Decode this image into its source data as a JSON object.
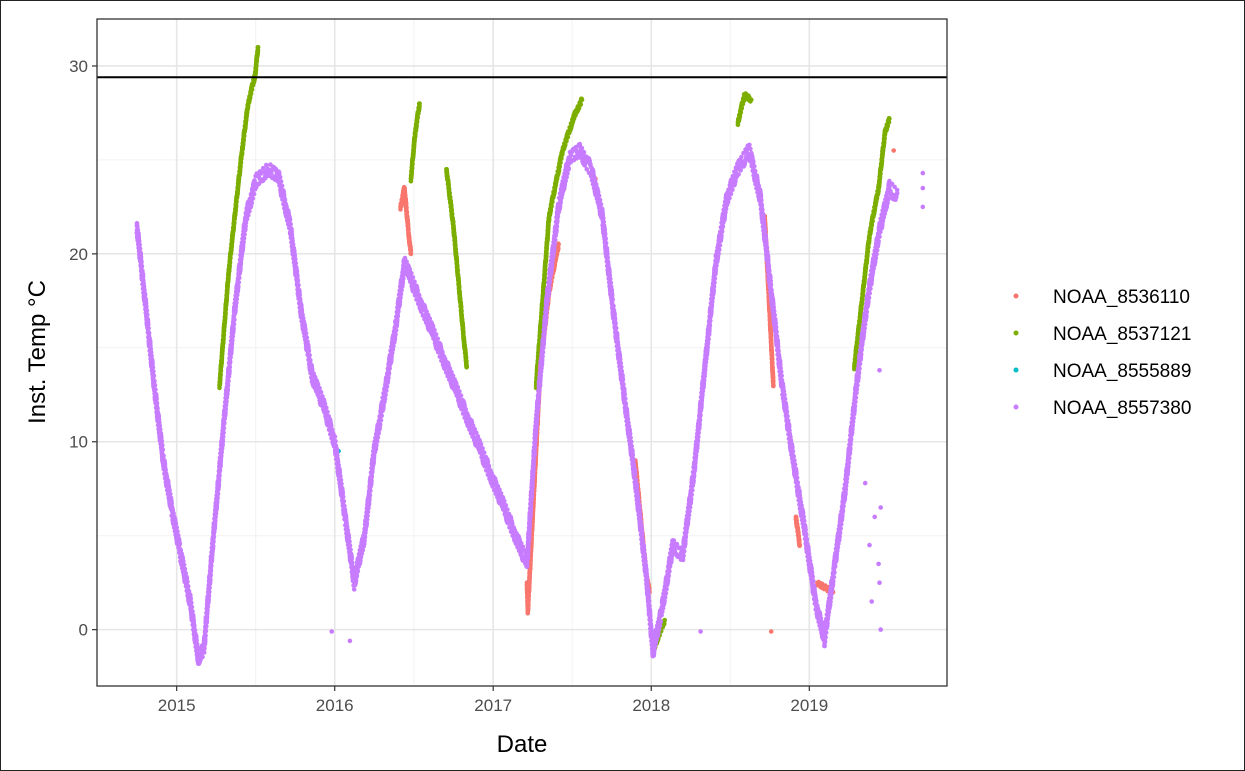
{
  "chart_data": {
    "type": "scatter",
    "title": "",
    "xlabel": "Date",
    "ylabel": "Inst. Temp °C",
    "xlim": [
      "2014-07-01",
      "2019-11-15"
    ],
    "ylim": [
      -3,
      32.5
    ],
    "x_ticks": [
      "2015-01-01",
      "2016-01-01",
      "2017-01-01",
      "2018-01-01",
      "2019-01-01"
    ],
    "x_tick_labels": [
      "2015",
      "2016",
      "2017",
      "2018",
      "2019"
    ],
    "y_ticks": [
      0,
      10,
      20,
      30
    ],
    "y_tick_labels": [
      "0",
      "10",
      "20",
      "30"
    ],
    "grid": true,
    "legend_position": "right",
    "reference_line": {
      "y": 29.4,
      "color": "#000000"
    },
    "series": [
      {
        "name": "NOAA_8536110",
        "color": "#F8766D",
        "points": [
          [
            "2016-06-01",
            22.5
          ],
          [
            "2016-06-10",
            23.5
          ],
          [
            "2016-06-20",
            21.0
          ],
          [
            "2016-06-25",
            20.0
          ],
          [
            "2017-03-20",
            2.5
          ],
          [
            "2017-03-22",
            1.0
          ],
          [
            "2017-04-20",
            14.0
          ],
          [
            "2017-05-10",
            18.0
          ],
          [
            "2017-06-01",
            20.5
          ],
          [
            "2017-08-25",
            24.0
          ],
          [
            "2017-11-25",
            9.0
          ],
          [
            "2017-12-20",
            3.0
          ],
          [
            "2017-12-28",
            2.0
          ],
          [
            "2018-09-20",
            22.0
          ],
          [
            "2018-10-10",
            13.0
          ],
          [
            "2018-10-05",
            -0.1
          ],
          [
            "2018-12-01",
            6.0
          ],
          [
            "2018-12-10",
            4.5
          ],
          [
            "2019-01-20",
            2.5
          ],
          [
            "2019-02-25",
            2.0
          ],
          [
            "2019-07-15",
            25.5
          ]
        ]
      },
      {
        "name": "NOAA_8537121",
        "color": "#7CAE00",
        "points": [
          [
            "2015-04-10",
            13.0
          ],
          [
            "2015-05-01",
            19.0
          ],
          [
            "2015-05-15",
            22.0
          ],
          [
            "2015-06-01",
            25.5
          ],
          [
            "2015-06-15",
            28.0
          ],
          [
            "2015-07-01",
            29.5
          ],
          [
            "2015-07-08",
            31.0
          ],
          [
            "2016-06-25",
            24.0
          ],
          [
            "2016-07-05",
            26.5
          ],
          [
            "2016-07-15",
            28.0
          ],
          [
            "2016-09-15",
            24.5
          ],
          [
            "2016-10-01",
            21.5
          ],
          [
            "2016-10-15",
            18.0
          ],
          [
            "2016-10-25",
            15.5
          ],
          [
            "2016-11-01",
            14.0
          ],
          [
            "2017-04-10",
            13.0
          ],
          [
            "2017-05-10",
            22.0
          ],
          [
            "2017-06-10",
            25.5
          ],
          [
            "2017-07-10",
            27.5
          ],
          [
            "2017-07-25",
            28.2
          ],
          [
            "2018-01-10",
            -0.8
          ],
          [
            "2018-02-01",
            0.5
          ],
          [
            "2018-07-20",
            27.0
          ],
          [
            "2018-08-05",
            28.5
          ],
          [
            "2018-08-20",
            28.2
          ],
          [
            "2019-02-25",
            3.0
          ],
          [
            "2019-04-15",
            14.0
          ],
          [
            "2019-05-20",
            21.0
          ],
          [
            "2019-06-10",
            23.5
          ],
          [
            "2019-06-25",
            26.5
          ],
          [
            "2019-07-05",
            27.2
          ]
        ]
      },
      {
        "name": "NOAA_8555889",
        "color": "#00BFC4",
        "points": [
          [
            "2016-01-10",
            9.5
          ]
        ]
      },
      {
        "name": "NOAA_8557380",
        "color": "#C77CFF",
        "curve_points": [
          [
            "2014-10-01",
            21.5
          ],
          [
            "2014-10-20",
            17.5
          ],
          [
            "2014-11-10",
            13.0
          ],
          [
            "2014-12-01",
            9.0
          ],
          [
            "2014-12-20",
            6.5
          ],
          [
            "2015-01-10",
            4.0
          ],
          [
            "2015-02-01",
            1.5
          ],
          [
            "2015-02-20",
            -1.5
          ],
          [
            "2015-03-05",
            -1.0
          ],
          [
            "2015-03-25",
            4.5
          ],
          [
            "2015-04-20",
            11.0
          ],
          [
            "2015-05-15",
            17.0
          ],
          [
            "2015-06-10",
            22.0
          ],
          [
            "2015-07-05",
            24.0
          ],
          [
            "2015-08-01",
            24.5
          ],
          [
            "2015-08-25",
            24.0
          ],
          [
            "2015-09-20",
            21.5
          ],
          [
            "2015-10-15",
            17.0
          ],
          [
            "2015-11-10",
            13.5
          ],
          [
            "2015-12-05",
            12.0
          ],
          [
            "2016-01-01",
            10.0
          ],
          [
            "2016-01-25",
            6.0
          ],
          [
            "2016-02-15",
            2.5
          ],
          [
            "2016-03-10",
            5.0
          ],
          [
            "2016-04-01",
            9.5
          ],
          [
            "2016-04-25",
            12.5
          ],
          [
            "2016-05-20",
            16.0
          ],
          [
            "2016-06-10",
            19.5
          ],
          [
            "2017-03-20",
            3.5
          ],
          [
            "2017-04-10",
            11.0
          ],
          [
            "2017-05-05",
            17.5
          ],
          [
            "2017-06-01",
            22.5
          ],
          [
            "2017-06-25",
            25.0
          ],
          [
            "2017-07-20",
            25.5
          ],
          [
            "2017-08-15",
            24.5
          ],
          [
            "2017-09-10",
            22.0
          ],
          [
            "2017-10-05",
            17.0
          ],
          [
            "2017-10-30",
            12.5
          ],
          [
            "2017-11-25",
            8.0
          ],
          [
            "2017-12-20",
            3.0
          ],
          [
            "2018-01-05",
            -1.2
          ],
          [
            "2018-01-25",
            1.0
          ],
          [
            "2018-02-20",
            4.5
          ],
          [
            "2018-03-15",
            4.0
          ],
          [
            "2018-04-10",
            8.5
          ],
          [
            "2018-05-05",
            14.0
          ],
          [
            "2018-05-30",
            19.5
          ],
          [
            "2018-06-25",
            23.0
          ],
          [
            "2018-07-20",
            24.5
          ],
          [
            "2018-08-15",
            25.5
          ],
          [
            "2018-09-10",
            23.0
          ],
          [
            "2018-10-05",
            18.0
          ],
          [
            "2018-10-30",
            13.0
          ],
          [
            "2018-11-25",
            9.0
          ],
          [
            "2018-12-20",
            5.5
          ],
          [
            "2019-01-15",
            1.5
          ],
          [
            "2019-02-05",
            -0.5
          ],
          [
            "2019-03-01",
            3.5
          ],
          [
            "2019-03-25",
            7.5
          ],
          [
            "2019-04-20",
            13.0
          ],
          [
            "2019-05-15",
            17.5
          ],
          [
            "2019-06-10",
            21.0
          ],
          [
            "2019-07-05",
            23.5
          ],
          [
            "2019-07-25",
            23.0
          ]
        ],
        "points": [
          [
            "2015-12-25",
            -0.1
          ],
          [
            "2016-02-05",
            -0.6
          ],
          [
            "2018-04-25",
            -0.1
          ],
          [
            "2019-05-10",
            7.8
          ],
          [
            "2019-05-20",
            4.5
          ],
          [
            "2019-05-25",
            1.5
          ],
          [
            "2019-06-01",
            6.0
          ],
          [
            "2019-06-10",
            3.5
          ],
          [
            "2019-06-12",
            2.5
          ],
          [
            "2019-06-15",
            0.0
          ],
          [
            "2019-06-15",
            6.5
          ],
          [
            "2019-06-12",
            13.8
          ],
          [
            "2019-09-20",
            22.5
          ],
          [
            "2019-09-20",
            23.5
          ],
          [
            "2019-09-20",
            24.3
          ]
        ]
      }
    ]
  }
}
